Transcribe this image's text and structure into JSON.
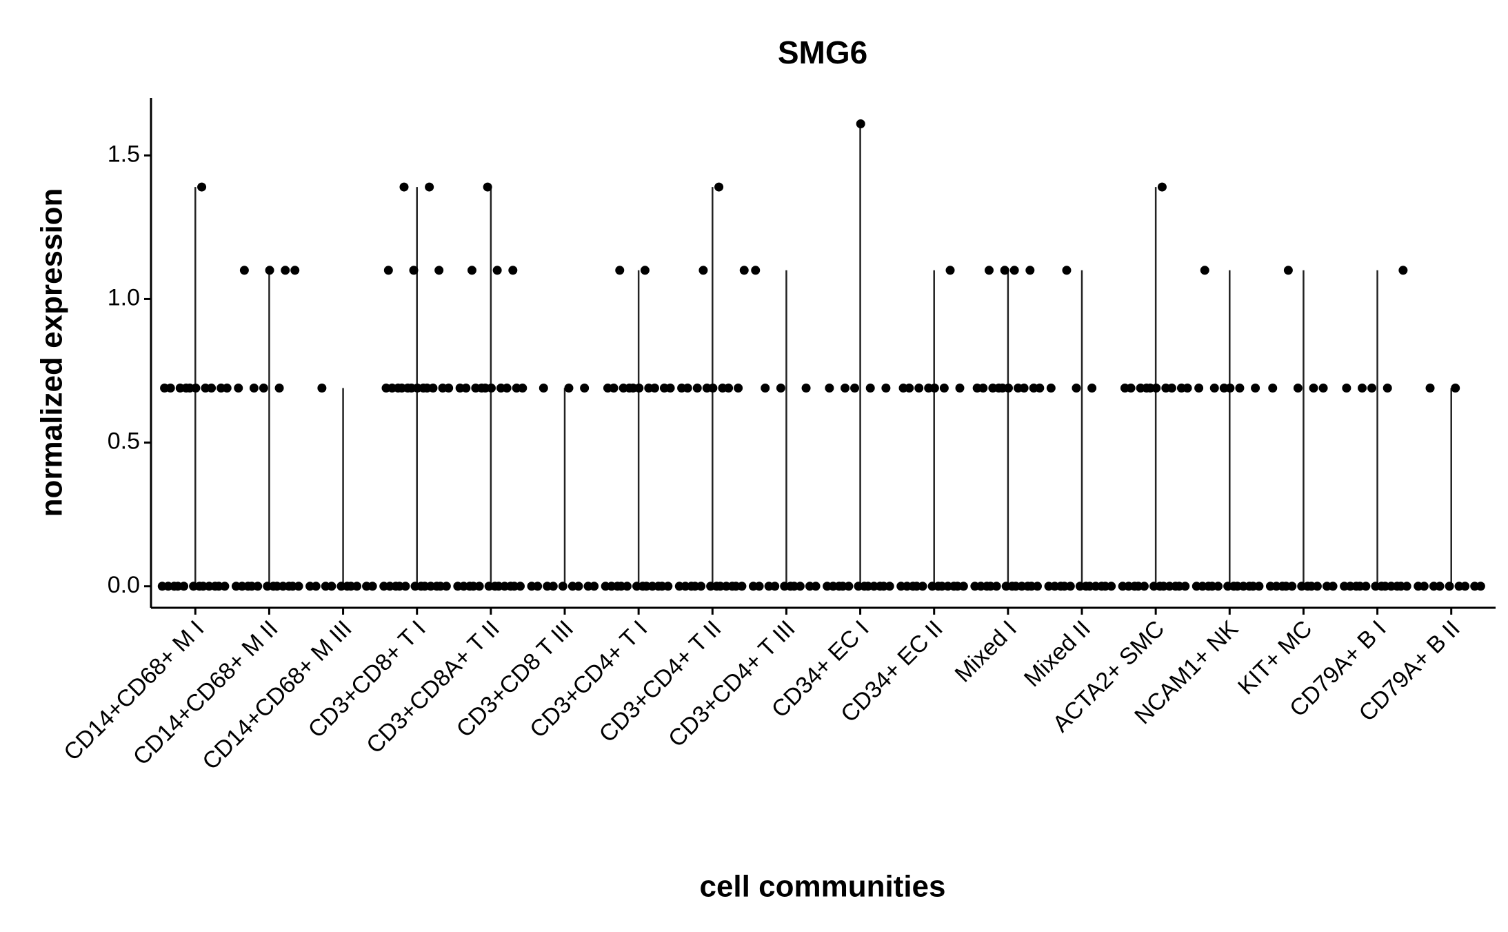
{
  "chart_data": {
    "type": "strip",
    "title": "SMG6",
    "x_label": "cell communities",
    "y_label": "normalized expression",
    "categories": [
      "CD14+CD68+ M I",
      "CD14+CD68+ M II",
      "CD14+CD68+ M III",
      "CD3+CD8+ T I",
      "CD3+CD8A+ T II",
      "CD3+CD8 T III",
      "CD3+CD4+ T I",
      "CD3+CD4+ T II",
      "CD3+CD4+ T III",
      "CD34+ EC I",
      "CD34+ EC II",
      "Mixed I",
      "Mixed II",
      "ACTA2+ SMC",
      "NCAM1+ NK",
      "KIT+ MC",
      "CD79A+ B I",
      "CD79A+ B II"
    ],
    "values": [
      [
        0,
        0,
        0,
        0,
        0,
        0,
        0,
        0,
        0,
        0,
        0,
        0,
        0.69,
        0.69,
        0.69,
        0.69,
        0.69,
        0.69,
        0.69,
        0.69,
        0.69,
        0.69,
        1.39
      ],
      [
        0,
        0,
        0,
        0,
        0,
        0,
        0,
        0,
        0,
        0,
        0,
        0,
        0.69,
        0.69,
        0.69,
        0.69,
        1.1,
        1.1,
        1.1,
        1.1
      ],
      [
        0,
        0,
        0,
        0,
        0,
        0,
        0,
        0,
        0,
        0,
        0.69
      ],
      [
        0,
        0,
        0,
        0,
        0,
        0,
        0,
        0,
        0,
        0,
        0,
        0,
        0.69,
        0.69,
        0.69,
        0.69,
        0.69,
        0.69,
        0.69,
        0.69,
        0.69,
        0.69,
        0.69,
        0.69,
        1.1,
        1.1,
        1.1,
        1.39,
        1.39
      ],
      [
        0,
        0,
        0,
        0,
        0,
        0,
        0,
        0,
        0,
        0,
        0,
        0,
        0.69,
        0.69,
        0.69,
        0.69,
        0.69,
        0.69,
        0.69,
        0.69,
        0.69,
        0.69,
        1.1,
        1.1,
        1.1,
        1.39
      ],
      [
        0,
        0,
        0,
        0,
        0,
        0,
        0,
        0,
        0,
        0.69,
        0.69,
        0.69
      ],
      [
        0,
        0,
        0,
        0,
        0,
        0,
        0,
        0,
        0,
        0,
        0,
        0,
        0.69,
        0.69,
        0.69,
        0.69,
        0.69,
        0.69,
        0.69,
        0.69,
        0.69,
        0.69,
        1.1,
        1.1
      ],
      [
        0,
        0,
        0,
        0,
        0,
        0,
        0,
        0,
        0,
        0,
        0,
        0,
        0.69,
        0.69,
        0.69,
        0.69,
        0.69,
        0.69,
        0.69,
        0.69,
        1.1,
        1.1,
        1.39
      ],
      [
        0,
        0,
        0,
        0,
        0,
        0,
        0,
        0,
        0,
        0,
        0.69,
        0.69,
        0.69,
        1.1
      ],
      [
        0,
        0,
        0,
        0,
        0,
        0,
        0,
        0,
        0,
        0,
        0,
        0,
        0.69,
        0.69,
        0.69,
        0.69,
        0.69,
        1.61
      ],
      [
        0,
        0,
        0,
        0,
        0,
        0,
        0,
        0,
        0,
        0,
        0,
        0,
        0.69,
        0.69,
        0.69,
        0.69,
        0.69,
        0.69,
        0.69,
        1.1
      ],
      [
        0,
        0,
        0,
        0,
        0,
        0,
        0,
        0,
        0,
        0,
        0,
        0,
        0.69,
        0.69,
        0.69,
        0.69,
        0.69,
        0.69,
        0.69,
        0.69,
        0.69,
        0.69,
        1.1,
        1.1,
        1.1,
        1.1
      ],
      [
        0,
        0,
        0,
        0,
        0,
        0,
        0,
        0,
        0,
        0,
        0,
        0,
        0.69,
        0.69,
        0.69,
        1.1
      ],
      [
        0,
        0,
        0,
        0,
        0,
        0,
        0,
        0,
        0,
        0,
        0,
        0,
        0.69,
        0.69,
        0.69,
        0.69,
        0.69,
        0.69,
        0.69,
        0.69,
        0.69,
        0.69,
        1.39
      ],
      [
        0,
        0,
        0,
        0,
        0,
        0,
        0,
        0,
        0,
        0,
        0,
        0,
        0.69,
        0.69,
        0.69,
        0.69,
        0.69,
        0.69,
        1.1
      ],
      [
        0,
        0,
        0,
        0,
        0,
        0,
        0,
        0,
        0,
        0,
        0,
        0.69,
        0.69,
        0.69,
        0.69,
        1.1
      ],
      [
        0,
        0,
        0,
        0,
        0,
        0,
        0,
        0,
        0,
        0,
        0,
        0,
        0.69,
        0.69,
        0.69,
        0.69,
        1.1
      ],
      [
        0,
        0,
        0,
        0,
        0,
        0,
        0,
        0,
        0,
        0.69,
        0.69
      ]
    ],
    "color": "#000000",
    "ylim": [
      -0.075,
      1.7
    ],
    "yticks": [
      {
        "value": 0,
        "label": "0.0"
      },
      0.5,
      {
        "value": 1,
        "label": "1.0"
      },
      1.5
    ]
  }
}
